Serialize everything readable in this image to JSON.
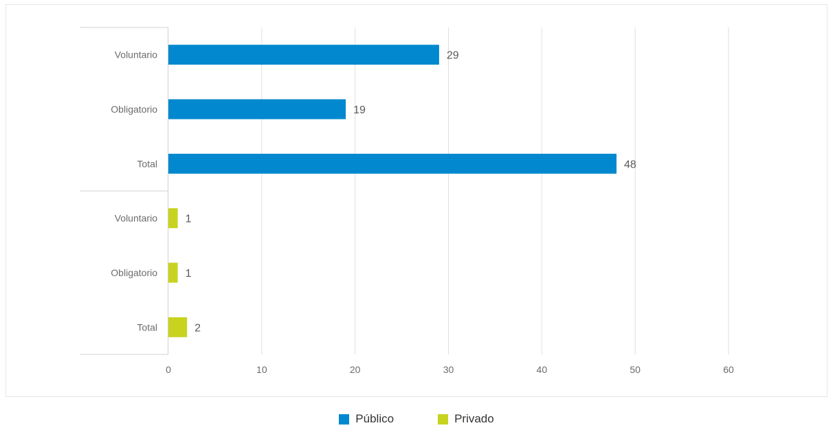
{
  "chart_data": {
    "type": "bar",
    "orientation": "horizontal",
    "groups": [
      {
        "name": "Público",
        "color": "#0288cf",
        "categories": [
          "Voluntario",
          "Obligatorio",
          "Total"
        ],
        "values": [
          29,
          19,
          48
        ]
      },
      {
        "name": "Privado",
        "color": "#c7d31e",
        "categories": [
          "Voluntario",
          "Obligatorio",
          "Total"
        ],
        "values": [
          1,
          1,
          2
        ]
      }
    ],
    "x_ticks": [
      "0",
      "10",
      "20",
      "30",
      "40",
      "50",
      "60"
    ],
    "xlim": [
      0,
      60
    ],
    "grid": true,
    "legend": {
      "position": "bottom",
      "items": [
        {
          "label": "Público",
          "color": "#0288cf"
        },
        {
          "label": "Privado",
          "color": "#c7d31e"
        }
      ]
    },
    "title": "",
    "xlabel": "",
    "ylabel": ""
  }
}
